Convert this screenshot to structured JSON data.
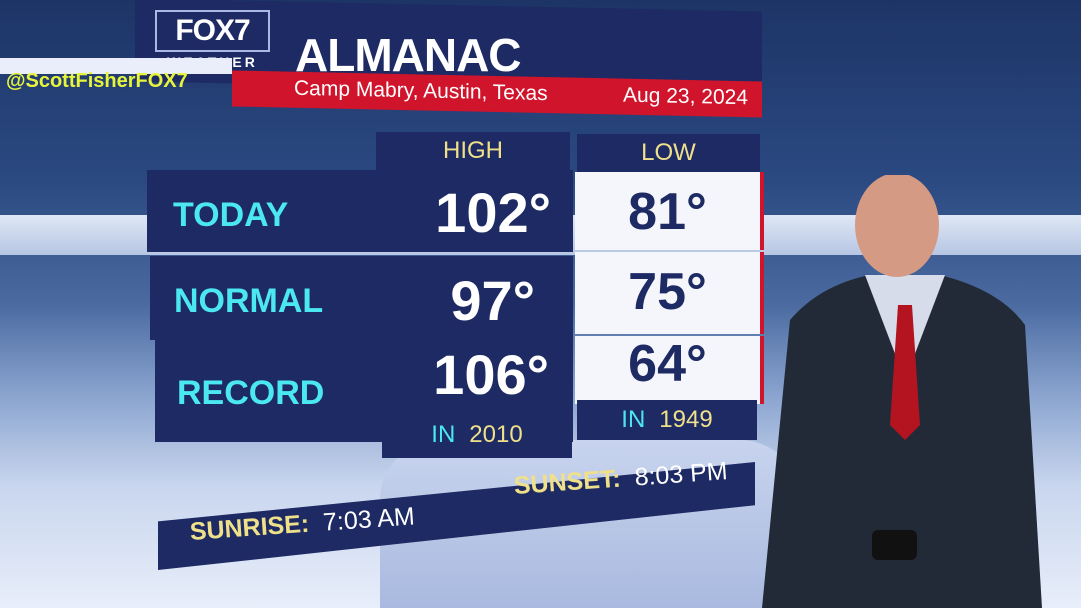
{
  "branding": {
    "logo_main": "FOX7",
    "logo_sub": "WEATHER",
    "handle": "@ScottFisherFOX7"
  },
  "header": {
    "title": "ALMANAC",
    "location": "Camp Mabry, Austin, Texas",
    "date": "Aug 23, 2024"
  },
  "columns": {
    "high": "HIGH",
    "low": "LOW"
  },
  "rows": [
    {
      "label": "TODAY",
      "high": "102°",
      "low": "81°"
    },
    {
      "label": "NORMAL",
      "high": "97°",
      "low": "75°"
    },
    {
      "label": "RECORD",
      "high": "106°",
      "low": "64°"
    }
  ],
  "record_years": {
    "prefix": "IN",
    "high_year": "2010",
    "low_year": "1949"
  },
  "sun": {
    "sunrise_label": "SUNRISE:",
    "sunrise": "7:03 AM",
    "sunset_label": "SUNSET:",
    "sunset": "8:03 PM"
  },
  "colors": {
    "navy": "#1d2a63",
    "red": "#d0142c",
    "cyan": "#4ce8ef",
    "gold": "#efe08a",
    "handle": "#e7f43c"
  }
}
